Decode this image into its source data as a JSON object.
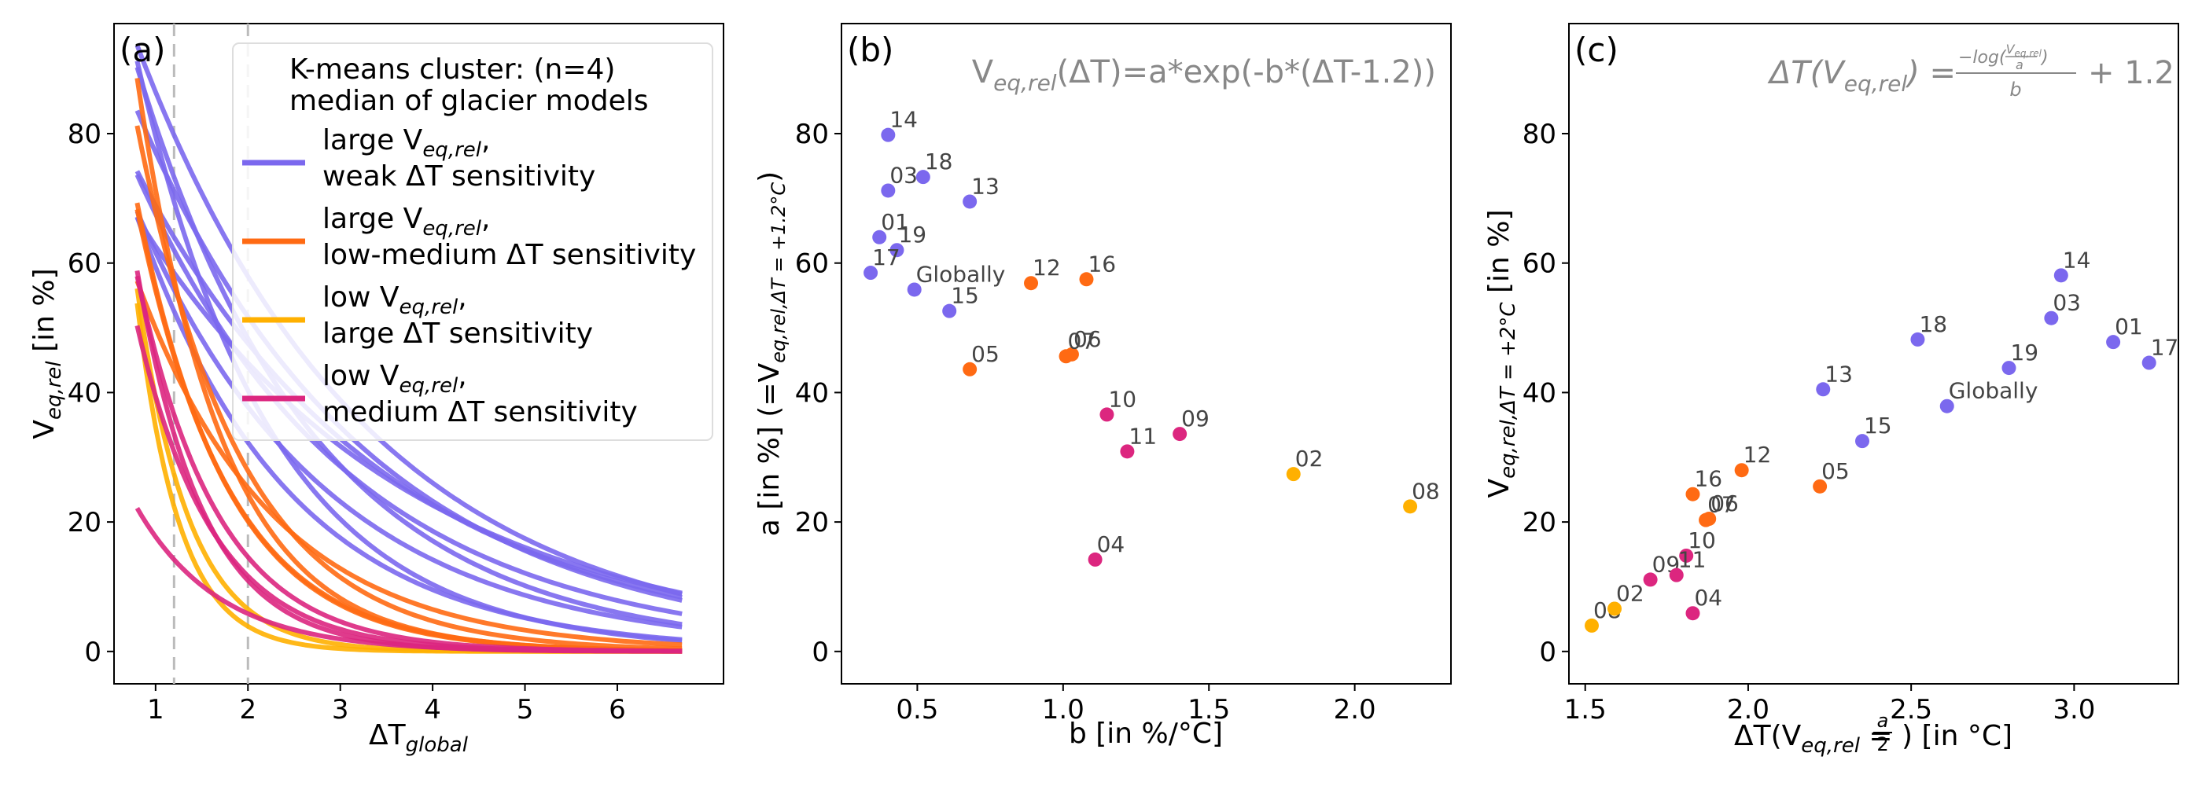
{
  "colors": {
    "large_weak": "#7b68ee",
    "large_lowmed": "#ff6a13",
    "low_large": "#ffb000",
    "low_med": "#dc267f",
    "vline": "#bbbbbb",
    "annot": "#888888"
  },
  "chart_data": [
    {
      "type": "line",
      "panel_label": "(a)",
      "xlabel_main": "ΔT",
      "xlabel_sub": "global",
      "ylabel_main": "V",
      "ylabel_sub": "eq,rel",
      "ylabel_tail": " [in %]",
      "xlim": [
        0.55,
        7.15
      ],
      "ylim": [
        -5,
        97
      ],
      "xticks": [
        1,
        2,
        3,
        4,
        5,
        6
      ],
      "yticks": [
        0,
        20,
        40,
        60,
        80
      ],
      "vlines": [
        1.2,
        2.0
      ],
      "x_range": [
        0.8,
        6.7
      ],
      "legend": {
        "title_line1": "K-means cluster: (n=4)",
        "title_line2": "median of glacier models",
        "entries": [
          {
            "cluster": "large_weak",
            "line1_main": "large V",
            "line1_sub": "eq,rel",
            "line1_tail": ",",
            "line2": "weak ΔT sensitivity"
          },
          {
            "cluster": "large_lowmed",
            "line1_main": "large V",
            "line1_sub": "eq,rel",
            "line1_tail": ",",
            "line2": "low-medium ΔT sensitivity"
          },
          {
            "cluster": "low_large",
            "line1_main": "low V",
            "line1_sub": "eq,rel",
            "line1_tail": ",",
            "line2": "large ΔT sensitivity"
          },
          {
            "cluster": "low_med",
            "line1_main": "low V",
            "line1_sub": "eq,rel",
            "line1_tail": ",",
            "line2": "medium ΔT sensitivity"
          }
        ]
      },
      "series": [
        {
          "label": "Globally",
          "cluster": "large_weak",
          "a": 55.9,
          "b": 0.49
        },
        {
          "label": "01",
          "cluster": "large_weak",
          "a": 64.0,
          "b": 0.37
        },
        {
          "label": "03",
          "cluster": "large_weak",
          "a": 71.2,
          "b": 0.4
        },
        {
          "label": "13",
          "cluster": "large_weak",
          "a": 69.5,
          "b": 0.68
        },
        {
          "label": "14",
          "cluster": "large_weak",
          "a": 79.8,
          "b": 0.4
        },
        {
          "label": "15",
          "cluster": "large_weak",
          "a": 52.6,
          "b": 0.61
        },
        {
          "label": "17",
          "cluster": "large_weak",
          "a": 58.5,
          "b": 0.34
        },
        {
          "label": "18",
          "cluster": "large_weak",
          "a": 73.3,
          "b": 0.52
        },
        {
          "label": "19",
          "cluster": "large_weak",
          "a": 62.0,
          "b": 0.43
        },
        {
          "label": "05",
          "cluster": "large_lowmed",
          "a": 43.6,
          "b": 0.68
        },
        {
          "label": "06",
          "cluster": "large_lowmed",
          "a": 45.9,
          "b": 1.03
        },
        {
          "label": "07",
          "cluster": "large_lowmed",
          "a": 45.6,
          "b": 1.01
        },
        {
          "label": "12",
          "cluster": "large_lowmed",
          "a": 56.9,
          "b": 0.89
        },
        {
          "label": "16",
          "cluster": "large_lowmed",
          "a": 57.5,
          "b": 1.08
        },
        {
          "label": "02",
          "cluster": "low_large",
          "a": 27.4,
          "b": 1.79
        },
        {
          "label": "08",
          "cluster": "low_large",
          "a": 22.4,
          "b": 2.19
        },
        {
          "label": "04",
          "cluster": "low_med",
          "a": 14.2,
          "b": 1.11
        },
        {
          "label": "09",
          "cluster": "low_med",
          "a": 33.6,
          "b": 1.4
        },
        {
          "label": "10",
          "cluster": "low_med",
          "a": 36.6,
          "b": 1.15
        },
        {
          "label": "11",
          "cluster": "low_med",
          "a": 30.9,
          "b": 1.22
        }
      ]
    },
    {
      "type": "scatter",
      "panel_label": "(b)",
      "formula_main": "V",
      "formula_sub": "eq,rel",
      "formula_tail": "(ΔT)=a*exp(-b*(ΔT-1.2))",
      "xlabel": "b [in %/°C]",
      "ylabel_pre": "a [in %] (=V",
      "ylabel_sub": "eq,rel,ΔT = +1.2°C",
      "ylabel_post": ")",
      "xlim": [
        0.24,
        2.33
      ],
      "ylim": [
        -5,
        97
      ],
      "xticks": [
        "0.5",
        "1.0",
        "1.5",
        "2.0"
      ],
      "yticks": [
        0,
        20,
        40,
        60,
        80
      ],
      "points": [
        {
          "label": "14",
          "cluster": "large_weak",
          "x": 0.4,
          "y": 79.8
        },
        {
          "label": "03",
          "cluster": "large_weak",
          "x": 0.4,
          "y": 71.2
        },
        {
          "label": "18",
          "cluster": "large_weak",
          "x": 0.52,
          "y": 73.3
        },
        {
          "label": "13",
          "cluster": "large_weak",
          "x": 0.68,
          "y": 69.5
        },
        {
          "label": "01",
          "cluster": "large_weak",
          "x": 0.37,
          "y": 64.0
        },
        {
          "label": "19",
          "cluster": "large_weak",
          "x": 0.43,
          "y": 62.0
        },
        {
          "label": "17",
          "cluster": "large_weak",
          "x": 0.34,
          "y": 58.5
        },
        {
          "label": "Globally",
          "cluster": "large_weak",
          "x": 0.49,
          "y": 55.9
        },
        {
          "label": "15",
          "cluster": "large_weak",
          "x": 0.61,
          "y": 52.6
        },
        {
          "label": "12",
          "cluster": "large_lowmed",
          "x": 0.89,
          "y": 56.9
        },
        {
          "label": "16",
          "cluster": "large_lowmed",
          "x": 1.08,
          "y": 57.5
        },
        {
          "label": "06",
          "cluster": "large_lowmed",
          "x": 1.03,
          "y": 45.9
        },
        {
          "label": "07",
          "cluster": "large_lowmed",
          "x": 1.01,
          "y": 45.6
        },
        {
          "label": "05",
          "cluster": "large_lowmed",
          "x": 0.68,
          "y": 43.6
        },
        {
          "label": "10",
          "cluster": "low_med",
          "x": 1.15,
          "y": 36.6
        },
        {
          "label": "11",
          "cluster": "low_med",
          "x": 1.22,
          "y": 30.9
        },
        {
          "label": "09",
          "cluster": "low_med",
          "x": 1.4,
          "y": 33.6
        },
        {
          "label": "04",
          "cluster": "low_med",
          "x": 1.11,
          "y": 14.2
        },
        {
          "label": "02",
          "cluster": "low_large",
          "x": 1.79,
          "y": 27.4
        },
        {
          "label": "08",
          "cluster": "low_large",
          "x": 2.19,
          "y": 22.4
        }
      ]
    },
    {
      "type": "scatter",
      "panel_label": "(c)",
      "formula_lhs": "ΔT(V",
      "formula_lhs_sub": "eq,rel",
      "formula_lhs_end": ") =",
      "formula_num_pre": "−log(",
      "formula_num_frac_top_main": "V",
      "formula_num_frac_top_sub": "eq,rel",
      "formula_num_frac_bottom": "a",
      "formula_num_post": ")",
      "formula_den": "b",
      "formula_tail": "+ 1.2",
      "xlabel_pre": "ΔT(V",
      "xlabel_sub": "eq,rel",
      "xlabel_mid": " = ",
      "xlabel_frac_top": "a",
      "xlabel_frac_bottom": "2",
      "xlabel_post": ") [in °C]",
      "ylabel_pre": "V",
      "ylabel_sub": "eq,rel,ΔT = +2°C",
      "ylabel_post": " [in %]",
      "xlim": [
        1.45,
        3.32
      ],
      "ylim": [
        -5,
        97
      ],
      "xticks": [
        "1.5",
        "2.0",
        "2.5",
        "3.0"
      ],
      "yticks": [
        0,
        20,
        40,
        60,
        80
      ],
      "points": [
        {
          "label": "14",
          "cluster": "large_weak",
          "x": 2.96,
          "y": 58.1
        },
        {
          "label": "03",
          "cluster": "large_weak",
          "x": 2.93,
          "y": 51.5
        },
        {
          "label": "18",
          "cluster": "large_weak",
          "x": 2.52,
          "y": 48.2
        },
        {
          "label": "01",
          "cluster": "large_weak",
          "x": 3.12,
          "y": 47.8
        },
        {
          "label": "17",
          "cluster": "large_weak",
          "x": 3.23,
          "y": 44.6
        },
        {
          "label": "19",
          "cluster": "large_weak",
          "x": 2.8,
          "y": 43.8
        },
        {
          "label": "13",
          "cluster": "large_weak",
          "x": 2.23,
          "y": 40.5
        },
        {
          "label": "Globally",
          "cluster": "large_weak",
          "x": 2.61,
          "y": 37.9
        },
        {
          "label": "15",
          "cluster": "large_weak",
          "x": 2.35,
          "y": 32.5
        },
        {
          "label": "12",
          "cluster": "large_lowmed",
          "x": 1.98,
          "y": 28.0
        },
        {
          "label": "05",
          "cluster": "large_lowmed",
          "x": 2.22,
          "y": 25.5
        },
        {
          "label": "16",
          "cluster": "large_lowmed",
          "x": 1.83,
          "y": 24.3
        },
        {
          "label": "06",
          "cluster": "large_lowmed",
          "x": 1.88,
          "y": 20.5
        },
        {
          "label": "07",
          "cluster": "large_lowmed",
          "x": 1.87,
          "y": 20.3
        },
        {
          "label": "10",
          "cluster": "low_med",
          "x": 1.81,
          "y": 14.8
        },
        {
          "label": "09",
          "cluster": "low_med",
          "x": 1.7,
          "y": 11.1
        },
        {
          "label": "11",
          "cluster": "low_med",
          "x": 1.78,
          "y": 11.8
        },
        {
          "label": "04",
          "cluster": "low_med",
          "x": 1.83,
          "y": 5.9
        },
        {
          "label": "08",
          "cluster": "low_large",
          "x": 1.52,
          "y": 4.0
        },
        {
          "label": "02",
          "cluster": "low_large",
          "x": 1.59,
          "y": 6.6
        }
      ]
    }
  ]
}
